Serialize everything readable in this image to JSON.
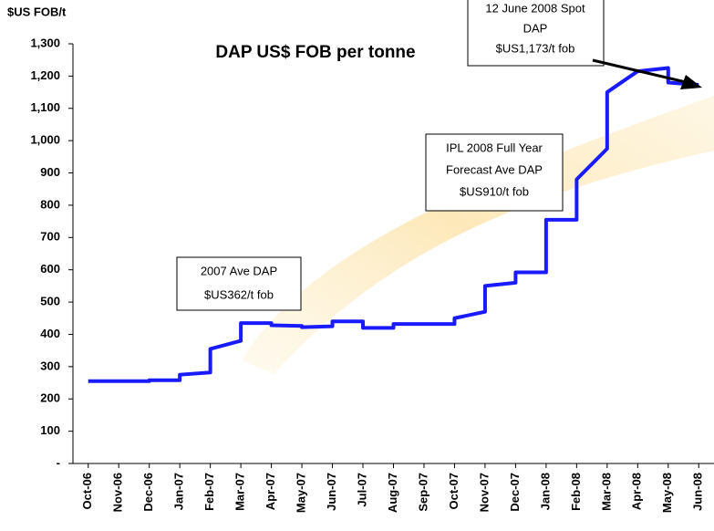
{
  "chart_data": {
    "type": "line",
    "title": "DAP US$ FOB per tonne",
    "y_label": "$US FOB/t",
    "xticks": [
      {
        "value": 0,
        "label": "Oct-06"
      },
      {
        "value": 1,
        "label": "Nov-06"
      },
      {
        "value": 2,
        "label": "Dec-06"
      },
      {
        "value": 3,
        "label": "Jan-07"
      },
      {
        "value": 4,
        "label": "Feb-07"
      },
      {
        "value": 5,
        "label": "Mar-07"
      },
      {
        "value": 6,
        "label": "Apr-07"
      },
      {
        "value": 7,
        "label": "May-07"
      },
      {
        "value": 8,
        "label": "Jun-07"
      },
      {
        "value": 9,
        "label": "Jul-07"
      },
      {
        "value": 10,
        "label": "Aug-07"
      },
      {
        "value": 11,
        "label": "Sep-07"
      },
      {
        "value": 12,
        "label": "Oct-07"
      },
      {
        "value": 13,
        "label": "Nov-07"
      },
      {
        "value": 14,
        "label": "Dec-07"
      },
      {
        "value": 15,
        "label": "Jan-08"
      },
      {
        "value": 16,
        "label": "Feb-08"
      },
      {
        "value": 17,
        "label": "Mar-08"
      },
      {
        "value": 18,
        "label": "Apr-08"
      },
      {
        "value": 19,
        "label": "May-08"
      },
      {
        "value": 20,
        "label": "Jun-08"
      }
    ],
    "xlim": [
      -0.5,
      20.5
    ],
    "ylim": [
      0,
      1300
    ],
    "yticks": [
      {
        "value": 0,
        "label": "-"
      },
      100,
      200,
      300,
      400,
      500,
      600,
      700,
      800,
      900,
      {
        "value": 1000,
        "label": "1,000"
      },
      {
        "value": 1100,
        "label": "1,100"
      },
      {
        "value": 1200,
        "label": "1,200"
      },
      {
        "value": 1300,
        "label": "1,300"
      }
    ],
    "series": [
      {
        "color": "#1a1aff",
        "x": [
          0,
          2,
          2,
          3,
          3,
          4,
          4,
          5,
          5,
          6,
          6,
          7,
          7,
          8,
          8,
          9,
          9,
          10,
          10,
          12,
          12,
          13,
          13,
          14,
          14,
          15,
          15,
          16,
          16,
          17,
          17,
          18,
          19,
          19,
          20
        ],
        "values": [
          255,
          255,
          258,
          258,
          275,
          282,
          355,
          380,
          435,
          435,
          428,
          426,
          422,
          425,
          440,
          440,
          420,
          420,
          432,
          432,
          450,
          470,
          550,
          560,
          592,
          592,
          755,
          755,
          880,
          975,
          1150,
          1215,
          1225,
          1180,
          1173
        ]
      }
    ],
    "annotations": [
      [
        "12 June 2008 Spot",
        "DAP",
        "$US1,173/t fob"
      ],
      [
        "IPL 2008 Full Year",
        "Forecast Ave DAP",
        "$US910/t fob"
      ],
      [
        "2007 Ave DAP",
        "$US362/t fob"
      ]
    ]
  }
}
